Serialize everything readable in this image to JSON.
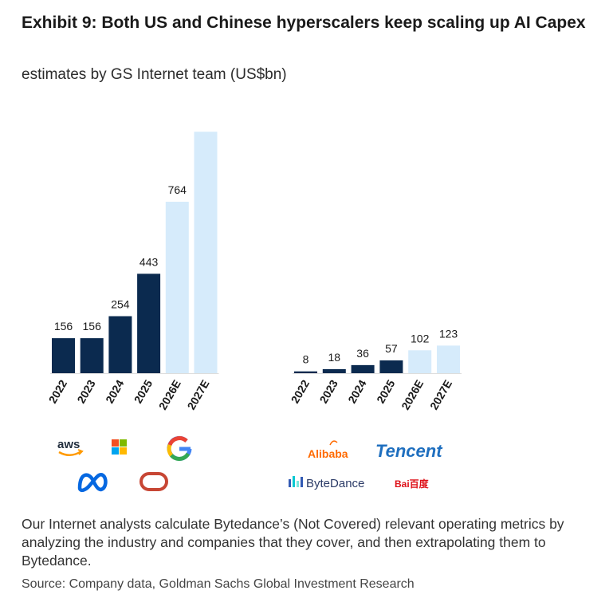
{
  "title": "Exhibit 9: Both US and Chinese hyperscalers keep scaling up AI Capex",
  "subtitle": "estimates by GS Internet team (US$bn)",
  "note": "Our Internet analysts calculate Bytedance’s (Not Covered) relevant operating metrics by analyzing the industry and companies that they cover, and then extrapolating them to Bytedance.",
  "source": "Source: Company data, Goldman Sachs Global Investment Research",
  "colors": {
    "actual": "#0b2a4f",
    "estimate": "#d6ebfb"
  },
  "chart_data": [
    {
      "type": "bar",
      "group": "US hyperscalers",
      "categories": [
        "2022",
        "2023",
        "2024",
        "2025",
        "2026E",
        "2027E"
      ],
      "values": [
        156,
        156,
        254,
        443,
        764,
        1076
      ],
      "labels": [
        "156",
        "156",
        "254",
        "443",
        "764",
        ""
      ],
      "estimate_from_index": 4,
      "companies": [
        "aws-logo",
        "microsoft-logo",
        "google-logo",
        "meta-logo",
        "oracle-logo"
      ],
      "logo_text": {
        "aws": "aws"
      }
    },
    {
      "type": "bar",
      "group": "Chinese hyperscalers",
      "categories": [
        "2022",
        "2023",
        "2024",
        "2025",
        "2026E",
        "2027E"
      ],
      "values": [
        8,
        18,
        36,
        57,
        102,
        123
      ],
      "labels": [
        "8",
        "18",
        "36",
        "57",
        "102",
        "123"
      ],
      "estimate_from_index": 4,
      "companies": [
        "alibaba-logo",
        "tencent-logo",
        "bytedance-logo",
        "baidu-logo"
      ],
      "logo_text": {
        "alibaba": "Alibaba",
        "tencent": "Tencent",
        "bytedance": "ByteDance",
        "baidu": "Bai百度"
      }
    }
  ]
}
